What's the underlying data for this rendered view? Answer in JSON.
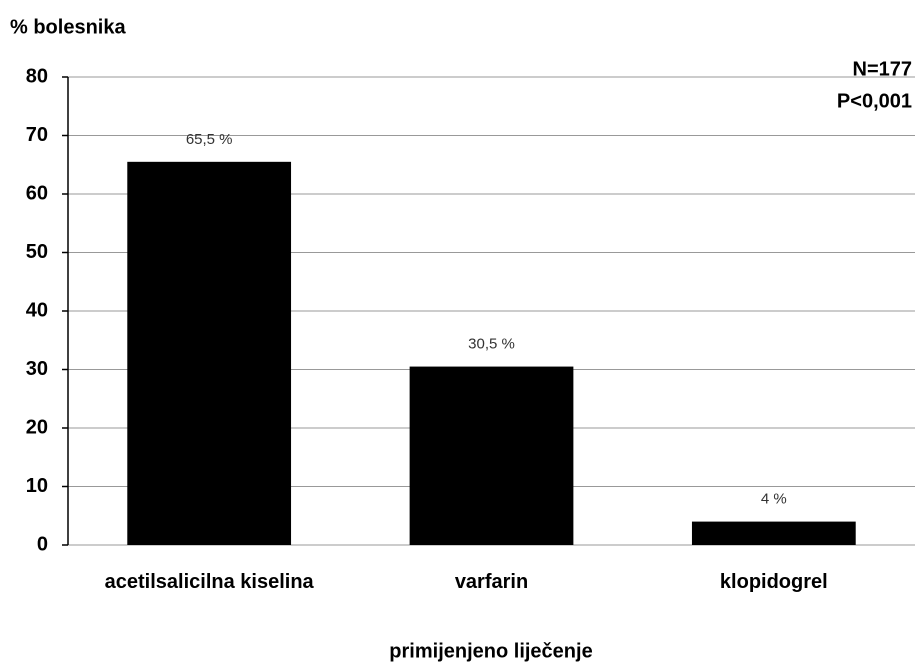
{
  "chart_data": {
    "type": "bar",
    "y_axis_label": "% bolesnika",
    "x_axis_label": "primijenjeno liječenje",
    "annotations": [
      "N=177",
      "P<0,001"
    ],
    "categories": [
      "acetilsalicilna kiselina",
      "varfarin",
      "klopidogrel"
    ],
    "values": [
      65.5,
      30.5,
      4
    ],
    "value_labels": [
      "65,5 %",
      "30,5 %",
      "4 %"
    ],
    "color": "#000000",
    "ylim": [
      0,
      80
    ],
    "yticks": [
      0,
      10,
      20,
      30,
      40,
      50,
      60,
      70,
      80
    ],
    "grid": true
  }
}
